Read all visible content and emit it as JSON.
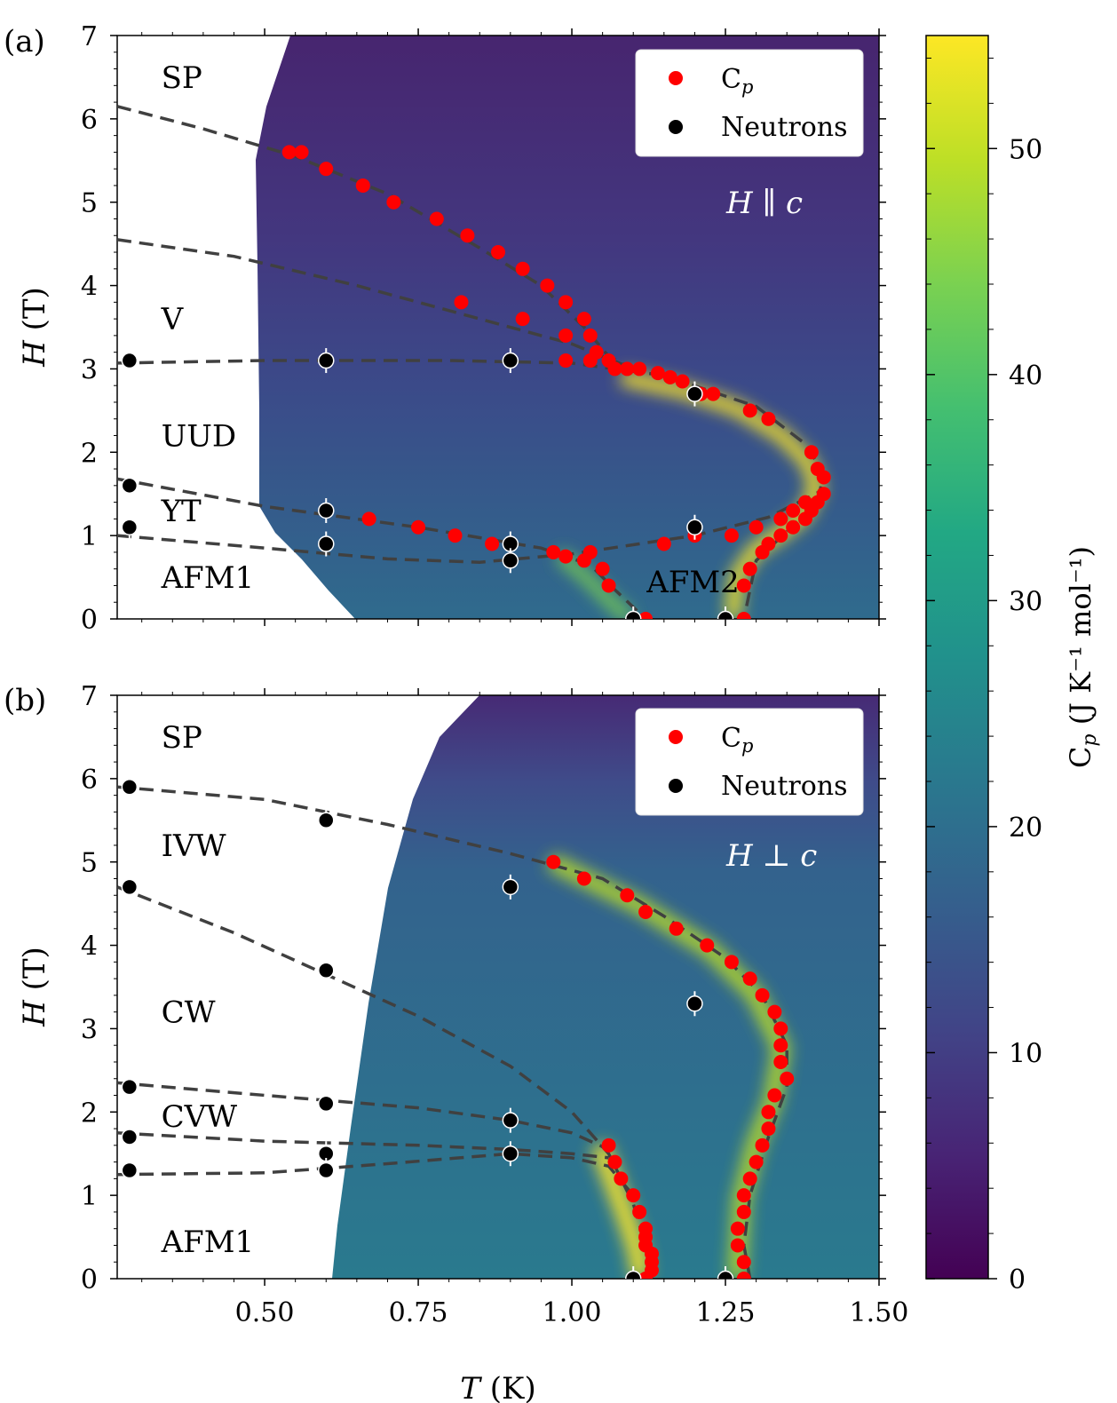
{
  "figure": {
    "xlabel": "T (K)",
    "colorbar": {
      "label": "C",
      "label_sub": "p",
      "label_units": "(J K⁻¹ mol⁻¹)",
      "range": [
        0,
        55
      ],
      "ticks": [
        0,
        10,
        20,
        30,
        40,
        50
      ],
      "colormap": "viridis"
    },
    "legend": {
      "cp": "C",
      "cp_sub": "p",
      "neutrons": "Neutrons"
    },
    "colors": {
      "cp": "#ff0000",
      "neutrons": "#000000",
      "boundary": "#404040",
      "field_label": "#ffffff"
    }
  },
  "chart_data": [
    {
      "type": "scatter",
      "panel_label": "(a)",
      "field_label": "H ∥ c",
      "xlabel": "T (K)",
      "ylabel": "H (T)",
      "xlim": [
        0.26,
        1.5
      ],
      "ylim": [
        0,
        7
      ],
      "xticks": [
        0.5,
        0.75,
        1.0,
        1.25,
        1.5
      ],
      "xticklabels": [
        "0.50",
        "0.75",
        "1.00",
        "1.25",
        "1.50"
      ],
      "yticks": [
        0,
        1,
        2,
        3,
        4,
        5,
        6,
        7
      ],
      "grid": false,
      "legend_position": "top-right",
      "phases": [
        {
          "label": "SP",
          "x": 0.31,
          "y": 6.5
        },
        {
          "label": "V",
          "x": 0.31,
          "y": 3.6
        },
        {
          "label": "UUD",
          "x": 0.31,
          "y": 2.2
        },
        {
          "label": "YT",
          "x": 0.31,
          "y": 1.3
        },
        {
          "label": "AFM1",
          "x": 0.31,
          "y": 0.5
        },
        {
          "label": "AFM2",
          "x": 1.1,
          "y": 0.45
        }
      ],
      "series": [
        {
          "name": "C",
          "kind": "cp",
          "points": [
            [
              0.54,
              5.6
            ],
            [
              0.56,
              5.6
            ],
            [
              0.6,
              5.4
            ],
            [
              0.66,
              5.2
            ],
            [
              0.71,
              5.0
            ],
            [
              0.78,
              4.8
            ],
            [
              0.83,
              4.6
            ],
            [
              0.88,
              4.4
            ],
            [
              0.92,
              4.2
            ],
            [
              0.96,
              4.0
            ],
            [
              0.99,
              3.8
            ],
            [
              1.02,
              3.6
            ],
            [
              0.82,
              3.8
            ],
            [
              0.92,
              3.6
            ],
            [
              0.99,
              3.4
            ],
            [
              1.03,
              3.4
            ],
            [
              1.04,
              3.2
            ],
            [
              1.06,
              3.1
            ],
            [
              0.99,
              3.1
            ],
            [
              1.03,
              3.1
            ],
            [
              1.07,
              3.0
            ],
            [
              1.09,
              3.0
            ],
            [
              1.11,
              3.0
            ],
            [
              1.14,
              2.95
            ],
            [
              1.16,
              2.9
            ],
            [
              1.18,
              2.85
            ],
            [
              1.21,
              2.7
            ],
            [
              1.23,
              2.7
            ],
            [
              1.29,
              2.5
            ],
            [
              1.32,
              2.4
            ],
            [
              1.39,
              2.0
            ],
            [
              1.4,
              1.8
            ],
            [
              1.41,
              1.7
            ],
            [
              1.41,
              1.5
            ],
            [
              1.4,
              1.4
            ],
            [
              1.39,
              1.3
            ],
            [
              1.38,
              1.2
            ],
            [
              1.36,
              1.1
            ],
            [
              1.34,
              1.0
            ],
            [
              1.32,
              0.9
            ],
            [
              1.31,
              0.8
            ],
            [
              1.29,
              0.6
            ],
            [
              1.28,
              0.4
            ],
            [
              1.28,
              0.0
            ],
            [
              1.38,
              1.4
            ],
            [
              1.36,
              1.3
            ],
            [
              1.34,
              1.2
            ],
            [
              1.3,
              1.1
            ],
            [
              1.26,
              1.0
            ],
            [
              1.2,
              1.0
            ],
            [
              1.15,
              0.9
            ],
            [
              0.67,
              1.2
            ],
            [
              0.75,
              1.1
            ],
            [
              0.81,
              1.0
            ],
            [
              0.87,
              0.9
            ],
            [
              0.97,
              0.8
            ],
            [
              0.99,
              0.75
            ],
            [
              1.02,
              0.7
            ],
            [
              1.03,
              0.8
            ],
            [
              1.05,
              0.6
            ],
            [
              1.06,
              0.4
            ],
            [
              1.12,
              0.0
            ]
          ]
        },
        {
          "name": "Neutrons",
          "kind": "neutron",
          "points": [
            [
              0.28,
              3.1
            ],
            [
              0.6,
              3.1
            ],
            [
              0.9,
              3.1
            ],
            [
              1.2,
              2.7
            ],
            [
              0.28,
              1.6
            ],
            [
              0.28,
              1.1
            ],
            [
              0.6,
              1.3
            ],
            [
              0.6,
              0.9
            ],
            [
              0.9,
              0.9
            ],
            [
              0.9,
              0.7
            ],
            [
              1.2,
              1.1
            ],
            [
              1.1,
              0.0
            ],
            [
              1.25,
              0.0
            ]
          ]
        }
      ],
      "boundaries": [
        [
          [
            0.26,
            6.15
          ],
          [
            0.4,
            5.88
          ],
          [
            0.55,
            5.55
          ],
          [
            0.7,
            5.1
          ],
          [
            0.85,
            4.45
          ],
          [
            0.95,
            4.0
          ],
          [
            1.02,
            3.5
          ],
          [
            1.06,
            3.15
          ],
          [
            1.1,
            3.0
          ]
        ],
        [
          [
            0.26,
            4.55
          ],
          [
            0.45,
            4.35
          ],
          [
            0.65,
            4.0
          ],
          [
            0.85,
            3.6
          ],
          [
            1.0,
            3.3
          ],
          [
            1.06,
            3.12
          ],
          [
            1.1,
            3.0
          ]
        ],
        [
          [
            0.26,
            3.07
          ],
          [
            0.5,
            3.1
          ],
          [
            0.8,
            3.1
          ],
          [
            1.0,
            3.07
          ],
          [
            1.15,
            2.92
          ],
          [
            1.3,
            2.55
          ],
          [
            1.38,
            2.1
          ],
          [
            1.41,
            1.75
          ],
          [
            1.4,
            1.4
          ],
          [
            1.35,
            1.05
          ],
          [
            1.3,
            0.7
          ],
          [
            1.28,
            0.0
          ]
        ],
        [
          [
            0.26,
            1.68
          ],
          [
            0.5,
            1.35
          ],
          [
            0.75,
            1.1
          ],
          [
            0.95,
            0.85
          ],
          [
            1.03,
            0.65
          ],
          [
            1.07,
            0.35
          ],
          [
            1.12,
            0.0
          ]
        ],
        [
          [
            0.26,
            1.0
          ],
          [
            0.5,
            0.85
          ],
          [
            0.7,
            0.72
          ],
          [
            0.85,
            0.68
          ],
          [
            1.0,
            0.78
          ],
          [
            1.2,
            1.0
          ],
          [
            1.32,
            1.22
          ],
          [
            1.41,
            1.55
          ]
        ]
      ]
    },
    {
      "type": "scatter",
      "panel_label": "(b)",
      "field_label": "H ⊥ c",
      "xlabel": "T (K)",
      "ylabel": "H (T)",
      "xlim": [
        0.26,
        1.5
      ],
      "ylim": [
        0,
        7
      ],
      "xticks": [
        0.5,
        0.75,
        1.0,
        1.25,
        1.5
      ],
      "xticklabels": [
        "0.50",
        "0.75",
        "1.00",
        "1.25",
        "1.50"
      ],
      "yticks": [
        0,
        1,
        2,
        3,
        4,
        5,
        6,
        7
      ],
      "grid": false,
      "legend_position": "top-right",
      "phases": [
        {
          "label": "SP",
          "x": 0.31,
          "y": 6.5
        },
        {
          "label": "IVW",
          "x": 0.31,
          "y": 5.2
        },
        {
          "label": "CW",
          "x": 0.31,
          "y": 3.2
        },
        {
          "label": "CVW",
          "x": 0.31,
          "y": 1.95
        },
        {
          "label": "AFM1",
          "x": 0.31,
          "y": 0.45
        }
      ],
      "series": [
        {
          "name": "C",
          "kind": "cp",
          "points": [
            [
              0.97,
              5.0
            ],
            [
              1.02,
              4.8
            ],
            [
              1.09,
              4.6
            ],
            [
              1.12,
              4.4
            ],
            [
              1.17,
              4.2
            ],
            [
              1.22,
              4.0
            ],
            [
              1.26,
              3.8
            ],
            [
              1.29,
              3.6
            ],
            [
              1.31,
              3.4
            ],
            [
              1.33,
              3.2
            ],
            [
              1.34,
              3.0
            ],
            [
              1.34,
              2.8
            ],
            [
              1.34,
              2.6
            ],
            [
              1.35,
              2.4
            ],
            [
              1.33,
              2.2
            ],
            [
              1.32,
              2.0
            ],
            [
              1.32,
              1.8
            ],
            [
              1.31,
              1.6
            ],
            [
              1.3,
              1.4
            ],
            [
              1.29,
              1.2
            ],
            [
              1.28,
              1.0
            ],
            [
              1.28,
              0.8
            ],
            [
              1.27,
              0.6
            ],
            [
              1.27,
              0.4
            ],
            [
              1.28,
              0.2
            ],
            [
              1.28,
              0.0
            ],
            [
              1.06,
              1.6
            ],
            [
              1.07,
              1.4
            ],
            [
              1.08,
              1.2
            ],
            [
              1.1,
              1.0
            ],
            [
              1.11,
              0.8
            ],
            [
              1.12,
              0.6
            ],
            [
              1.12,
              0.5
            ],
            [
              1.12,
              0.4
            ],
            [
              1.13,
              0.3
            ],
            [
              1.13,
              0.2
            ],
            [
              1.13,
              0.1
            ],
            [
              1.12,
              0.0
            ]
          ]
        },
        {
          "name": "Neutrons",
          "kind": "neutron",
          "points": [
            [
              0.28,
              5.9
            ],
            [
              0.6,
              5.5
            ],
            [
              0.28,
              4.7
            ],
            [
              0.6,
              3.7
            ],
            [
              0.9,
              4.7
            ],
            [
              1.2,
              3.3
            ],
            [
              0.28,
              2.3
            ],
            [
              0.6,
              2.1
            ],
            [
              0.9,
              1.9
            ],
            [
              0.28,
              1.7
            ],
            [
              0.6,
              1.5
            ],
            [
              0.9,
              1.5
            ],
            [
              0.28,
              1.3
            ],
            [
              0.6,
              1.3
            ],
            [
              1.1,
              0.0
            ],
            [
              1.25,
              0.0
            ]
          ]
        }
      ],
      "boundaries": [
        [
          [
            0.26,
            5.9
          ],
          [
            0.5,
            5.75
          ],
          [
            0.7,
            5.45
          ],
          [
            0.9,
            5.1
          ],
          [
            1.05,
            4.8
          ],
          [
            1.15,
            4.35
          ],
          [
            1.25,
            3.85
          ],
          [
            1.31,
            3.4
          ],
          [
            1.35,
            2.8
          ],
          [
            1.35,
            2.3
          ],
          [
            1.32,
            1.7
          ],
          [
            1.29,
            1.0
          ],
          [
            1.28,
            0.4
          ],
          [
            1.29,
            0.0
          ]
        ],
        [
          [
            0.26,
            4.7
          ],
          [
            0.45,
            4.15
          ],
          [
            0.6,
            3.65
          ],
          [
            0.75,
            3.15
          ],
          [
            0.9,
            2.55
          ],
          [
            1.0,
            2.0
          ],
          [
            1.06,
            1.5
          ],
          [
            1.1,
            0.9
          ],
          [
            1.12,
            0.4
          ],
          [
            1.13,
            0.0
          ]
        ],
        [
          [
            0.26,
            2.35
          ],
          [
            0.5,
            2.2
          ],
          [
            0.75,
            2.05
          ],
          [
            0.9,
            1.9
          ],
          [
            1.0,
            1.75
          ],
          [
            1.06,
            1.55
          ]
        ],
        [
          [
            0.26,
            1.75
          ],
          [
            0.5,
            1.65
          ],
          [
            0.75,
            1.6
          ],
          [
            0.9,
            1.55
          ],
          [
            1.0,
            1.5
          ],
          [
            1.06,
            1.45
          ]
        ],
        [
          [
            0.26,
            1.25
          ],
          [
            0.5,
            1.27
          ],
          [
            0.7,
            1.38
          ],
          [
            0.9,
            1.5
          ],
          [
            1.0,
            1.45
          ],
          [
            1.06,
            1.35
          ],
          [
            1.1,
            1.0
          ]
        ]
      ]
    }
  ]
}
